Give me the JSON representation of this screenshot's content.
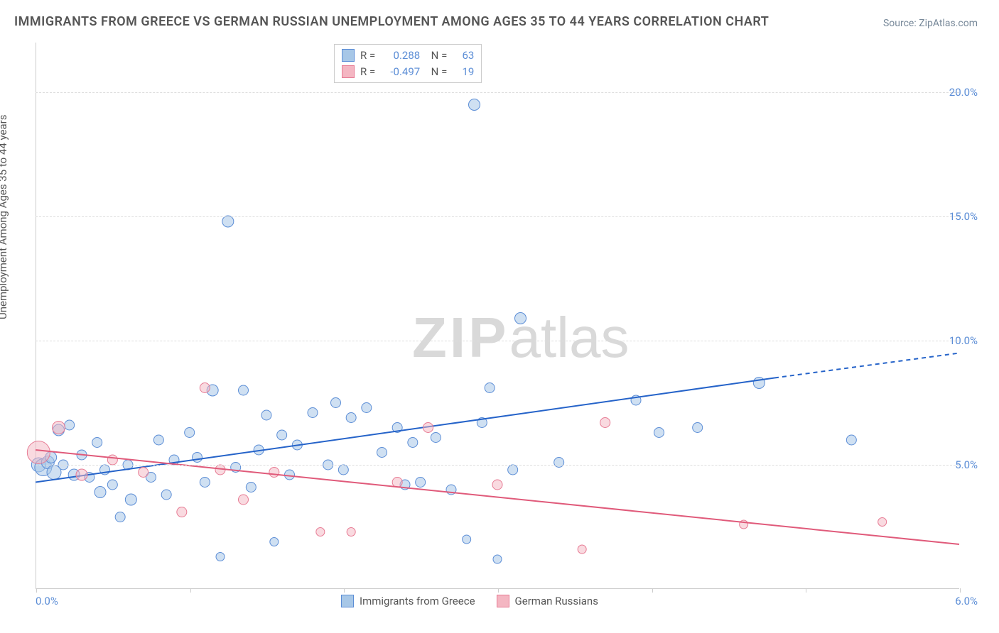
{
  "title": "IMMIGRANTS FROM GREECE VS GERMAN RUSSIAN UNEMPLOYMENT AMONG AGES 35 TO 44 YEARS CORRELATION CHART",
  "source": "Source: ZipAtlas.com",
  "y_axis_label": "Unemployment Among Ages 35 to 44 years",
  "watermark_a": "ZIP",
  "watermark_b": "atlas",
  "chart": {
    "type": "scatter",
    "xlim": [
      0,
      6
    ],
    "ylim": [
      0,
      22
    ],
    "x_ticks": [
      0,
      1,
      2,
      3,
      4,
      5,
      6
    ],
    "x_tick_labels": {
      "0": "0.0%",
      "6": "6.0%"
    },
    "y_ticks": [
      5,
      10,
      15,
      20
    ],
    "y_tick_labels": [
      "5.0%",
      "10.0%",
      "15.0%",
      "20.0%"
    ],
    "background_color": "#ffffff",
    "grid_color": "#dddddd",
    "axis_color": "#cccccc",
    "tick_label_color": "#5b8dd6",
    "series": [
      {
        "name": "Immigrants from Greece",
        "color_fill": "#a7c7e7",
        "color_stroke": "#5b8dd6",
        "fill_opacity": 0.55,
        "marker_radius_range": [
          5,
          14
        ],
        "correlation_R": "0.288",
        "correlation_N": "63",
        "trend": {
          "x1": 0,
          "y1": 4.3,
          "x2": 4.8,
          "y2": 8.5,
          "x_extend": 6.0,
          "y_extend": 9.5,
          "color": "#2563c9",
          "width": 2
        },
        "points": [
          {
            "x": 0.02,
            "y": 5.0,
            "r": 10
          },
          {
            "x": 0.05,
            "y": 4.9,
            "r": 12
          },
          {
            "x": 0.08,
            "y": 5.1,
            "r": 9
          },
          {
            "x": 0.1,
            "y": 5.3,
            "r": 8
          },
          {
            "x": 0.12,
            "y": 4.7,
            "r": 10
          },
          {
            "x": 0.15,
            "y": 6.4,
            "r": 8
          },
          {
            "x": 0.18,
            "y": 5.0,
            "r": 7
          },
          {
            "x": 0.22,
            "y": 6.6,
            "r": 7
          },
          {
            "x": 0.25,
            "y": 4.6,
            "r": 8
          },
          {
            "x": 0.3,
            "y": 5.4,
            "r": 7
          },
          {
            "x": 0.35,
            "y": 4.5,
            "r": 7
          },
          {
            "x": 0.4,
            "y": 5.9,
            "r": 7
          },
          {
            "x": 0.42,
            "y": 3.9,
            "r": 8
          },
          {
            "x": 0.45,
            "y": 4.8,
            "r": 7
          },
          {
            "x": 0.5,
            "y": 4.2,
            "r": 7
          },
          {
            "x": 0.55,
            "y": 2.9,
            "r": 7
          },
          {
            "x": 0.6,
            "y": 5.0,
            "r": 7
          },
          {
            "x": 0.62,
            "y": 3.6,
            "r": 8
          },
          {
            "x": 0.75,
            "y": 4.5,
            "r": 7
          },
          {
            "x": 0.8,
            "y": 6.0,
            "r": 7
          },
          {
            "x": 0.85,
            "y": 3.8,
            "r": 7
          },
          {
            "x": 0.9,
            "y": 5.2,
            "r": 7
          },
          {
            "x": 1.0,
            "y": 6.3,
            "r": 7
          },
          {
            "x": 1.05,
            "y": 5.3,
            "r": 7
          },
          {
            "x": 1.1,
            "y": 4.3,
            "r": 7
          },
          {
            "x": 1.15,
            "y": 8.0,
            "r": 8
          },
          {
            "x": 1.2,
            "y": 1.3,
            "r": 6
          },
          {
            "x": 1.25,
            "y": 14.8,
            "r": 8
          },
          {
            "x": 1.3,
            "y": 4.9,
            "r": 7
          },
          {
            "x": 1.35,
            "y": 8.0,
            "r": 7
          },
          {
            "x": 1.4,
            "y": 4.1,
            "r": 7
          },
          {
            "x": 1.45,
            "y": 5.6,
            "r": 7
          },
          {
            "x": 1.5,
            "y": 7.0,
            "r": 7
          },
          {
            "x": 1.55,
            "y": 1.9,
            "r": 6
          },
          {
            "x": 1.6,
            "y": 6.2,
            "r": 7
          },
          {
            "x": 1.65,
            "y": 4.6,
            "r": 7
          },
          {
            "x": 1.7,
            "y": 5.8,
            "r": 7
          },
          {
            "x": 1.8,
            "y": 7.1,
            "r": 7
          },
          {
            "x": 1.9,
            "y": 5.0,
            "r": 7
          },
          {
            "x": 1.95,
            "y": 7.5,
            "r": 7
          },
          {
            "x": 2.0,
            "y": 4.8,
            "r": 7
          },
          {
            "x": 2.05,
            "y": 6.9,
            "r": 7
          },
          {
            "x": 2.15,
            "y": 7.3,
            "r": 7
          },
          {
            "x": 2.25,
            "y": 5.5,
            "r": 7
          },
          {
            "x": 2.35,
            "y": 6.5,
            "r": 7
          },
          {
            "x": 2.4,
            "y": 4.2,
            "r": 7
          },
          {
            "x": 2.45,
            "y": 5.9,
            "r": 7
          },
          {
            "x": 2.5,
            "y": 4.3,
            "r": 7
          },
          {
            "x": 2.6,
            "y": 6.1,
            "r": 7
          },
          {
            "x": 2.7,
            "y": 4.0,
            "r": 7
          },
          {
            "x": 2.8,
            "y": 2.0,
            "r": 6
          },
          {
            "x": 2.85,
            "y": 19.5,
            "r": 8
          },
          {
            "x": 2.9,
            "y": 6.7,
            "r": 7
          },
          {
            "x": 2.95,
            "y": 8.1,
            "r": 7
          },
          {
            "x": 3.0,
            "y": 1.2,
            "r": 6
          },
          {
            "x": 3.1,
            "y": 4.8,
            "r": 7
          },
          {
            "x": 3.15,
            "y": 10.9,
            "r": 8
          },
          {
            "x": 3.4,
            "y": 5.1,
            "r": 7
          },
          {
            "x": 3.9,
            "y": 7.6,
            "r": 7
          },
          {
            "x": 4.05,
            "y": 6.3,
            "r": 7
          },
          {
            "x": 4.3,
            "y": 6.5,
            "r": 7
          },
          {
            "x": 4.7,
            "y": 8.3,
            "r": 8
          },
          {
            "x": 5.3,
            "y": 6.0,
            "r": 7
          }
        ]
      },
      {
        "name": "German Russians",
        "color_fill": "#f4b6c2",
        "color_stroke": "#e77a93",
        "fill_opacity": 0.5,
        "marker_radius_range": [
          5,
          16
        ],
        "correlation_R": "-0.497",
        "correlation_N": "19",
        "trend": {
          "x1": 0,
          "y1": 5.6,
          "x2": 6.0,
          "y2": 1.8,
          "color": "#e05a7a",
          "width": 2
        },
        "points": [
          {
            "x": 0.02,
            "y": 5.5,
            "r": 16
          },
          {
            "x": 0.15,
            "y": 6.5,
            "r": 9
          },
          {
            "x": 0.3,
            "y": 4.6,
            "r": 8
          },
          {
            "x": 0.5,
            "y": 5.2,
            "r": 7
          },
          {
            "x": 0.7,
            "y": 4.7,
            "r": 7
          },
          {
            "x": 0.95,
            "y": 3.1,
            "r": 7
          },
          {
            "x": 1.1,
            "y": 8.1,
            "r": 7
          },
          {
            "x": 1.2,
            "y": 4.8,
            "r": 7
          },
          {
            "x": 1.35,
            "y": 3.6,
            "r": 7
          },
          {
            "x": 1.55,
            "y": 4.7,
            "r": 7
          },
          {
            "x": 1.85,
            "y": 2.3,
            "r": 6
          },
          {
            "x": 2.05,
            "y": 2.3,
            "r": 6
          },
          {
            "x": 2.35,
            "y": 4.3,
            "r": 7
          },
          {
            "x": 2.55,
            "y": 6.5,
            "r": 7
          },
          {
            "x": 3.55,
            "y": 1.6,
            "r": 6
          },
          {
            "x": 3.7,
            "y": 6.7,
            "r": 7
          },
          {
            "x": 4.6,
            "y": 2.6,
            "r": 6
          },
          {
            "x": 5.5,
            "y": 2.7,
            "r": 6
          },
          {
            "x": 3.0,
            "y": 4.2,
            "r": 7
          }
        ]
      }
    ]
  },
  "legend_top": [
    {
      "swatch_fill": "#a7c7e7",
      "swatch_stroke": "#5b8dd6",
      "R_label": "R =",
      "R": "0.288",
      "N_label": "N =",
      "N": "63"
    },
    {
      "swatch_fill": "#f4b6c2",
      "swatch_stroke": "#e77a93",
      "R_label": "R =",
      "R": "-0.497",
      "N_label": "N =",
      "N": "19"
    }
  ],
  "legend_bottom": [
    {
      "swatch_fill": "#a7c7e7",
      "swatch_stroke": "#5b8dd6",
      "label": "Immigrants from Greece"
    },
    {
      "swatch_fill": "#f4b6c2",
      "swatch_stroke": "#e77a93",
      "label": "German Russians"
    }
  ]
}
